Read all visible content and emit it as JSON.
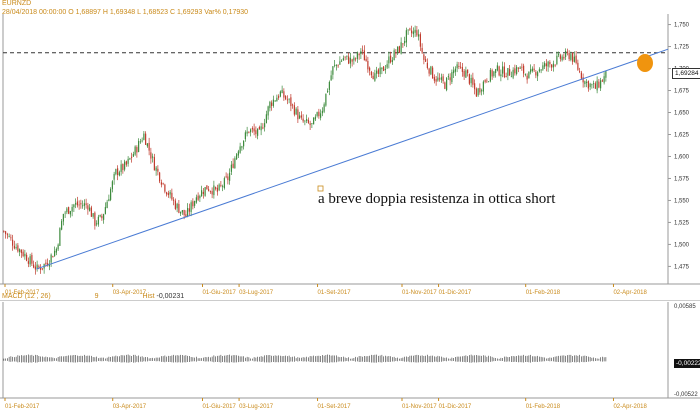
{
  "header": {
    "symbol": "EURNZD",
    "date": "28/04/2018",
    "time": "00:00:00",
    "open": "O 1,68897",
    "high": "H 1,69348",
    "low": "L 1,68523",
    "close": "C 1,69293",
    "var": "Var% 0,17930"
  },
  "annotation": "a breve doppia resistenza in ottica short",
  "last_price": "1,69284",
  "macd": {
    "label": "MACD",
    "params": "(12 , 26)",
    "signal_period": "9",
    "hist_label": "Hist",
    "hist_value": "-0,00231",
    "last_value": "-0,00222",
    "ytick_top": "0,00585",
    "ytick_bottom": "-0,00522"
  },
  "colors": {
    "up": "#3c8a3c",
    "down": "#c0392b",
    "trend": "#4a7bd4",
    "accent": "#c98a1a",
    "marker": "#f0940e"
  },
  "chart_data": {
    "type": "candlestick",
    "symbol": "EURNZD",
    "x_ticks": [
      "01-Feb-2017",
      "03-Apr-2017",
      "01-Giu-2017",
      "03-Lug-2017",
      "01-Set-2017",
      "01-Nov-2017",
      "01-Dic-2017",
      "01-Feb-2018",
      "02-Apr-2018"
    ],
    "y_ticks": [
      "1,475",
      "1,500",
      "1,525",
      "1,550",
      "1,575",
      "1,600",
      "1,625",
      "1,650",
      "1,675",
      "1,700",
      "1,725",
      "1,750"
    ],
    "ylim": [
      1.455,
      1.762
    ],
    "close_path": [
      [
        0,
        1.515
      ],
      [
        6,
        1.5
      ],
      [
        12,
        1.488
      ],
      [
        19,
        1.472
      ],
      [
        24,
        1.478
      ],
      [
        30,
        1.495
      ],
      [
        34,
        1.535
      ],
      [
        40,
        1.545
      ],
      [
        48,
        1.545
      ],
      [
        52,
        1.525
      ],
      [
        56,
        1.53
      ],
      [
        64,
        1.582
      ],
      [
        70,
        1.59
      ],
      [
        76,
        1.61
      ],
      [
        80,
        1.625
      ],
      [
        86,
        1.59
      ],
      [
        92,
        1.565
      ],
      [
        98,
        1.545
      ],
      [
        104,
        1.532
      ],
      [
        110,
        1.555
      ],
      [
        116,
        1.565
      ],
      [
        122,
        1.56
      ],
      [
        128,
        1.575
      ],
      [
        134,
        1.61
      ],
      [
        140,
        1.63
      ],
      [
        146,
        1.625
      ],
      [
        152,
        1.66
      ],
      [
        158,
        1.672
      ],
      [
        164,
        1.66
      ],
      [
        170,
        1.64
      ],
      [
        176,
        1.635
      ],
      [
        182,
        1.655
      ],
      [
        188,
        1.7
      ],
      [
        194,
        1.712
      ],
      [
        200,
        1.708
      ],
      [
        204,
        1.72
      ],
      [
        208,
        1.705
      ],
      [
        212,
        1.69
      ],
      [
        216,
        1.697
      ],
      [
        220,
        1.71
      ],
      [
        226,
        1.722
      ],
      [
        230,
        1.738
      ],
      [
        236,
        1.742
      ],
      [
        240,
        1.71
      ],
      [
        246,
        1.69
      ],
      [
        252,
        1.682
      ],
      [
        258,
        1.7
      ],
      [
        264,
        1.695
      ],
      [
        270,
        1.672
      ],
      [
        276,
        1.69
      ],
      [
        282,
        1.698
      ],
      [
        288,
        1.695
      ],
      [
        294,
        1.7
      ],
      [
        300,
        1.692
      ],
      [
        306,
        1.7
      ],
      [
        312,
        1.705
      ],
      [
        318,
        1.712
      ],
      [
        324,
        1.716
      ],
      [
        328,
        1.7
      ],
      [
        332,
        1.685
      ],
      [
        338,
        1.678
      ],
      [
        344,
        1.692
      ]
    ],
    "resistance_level": 1.718,
    "trendline": [
      [
        19,
        1.472
      ],
      [
        380,
        1.722
      ]
    ],
    "x_period_count": 380
  }
}
